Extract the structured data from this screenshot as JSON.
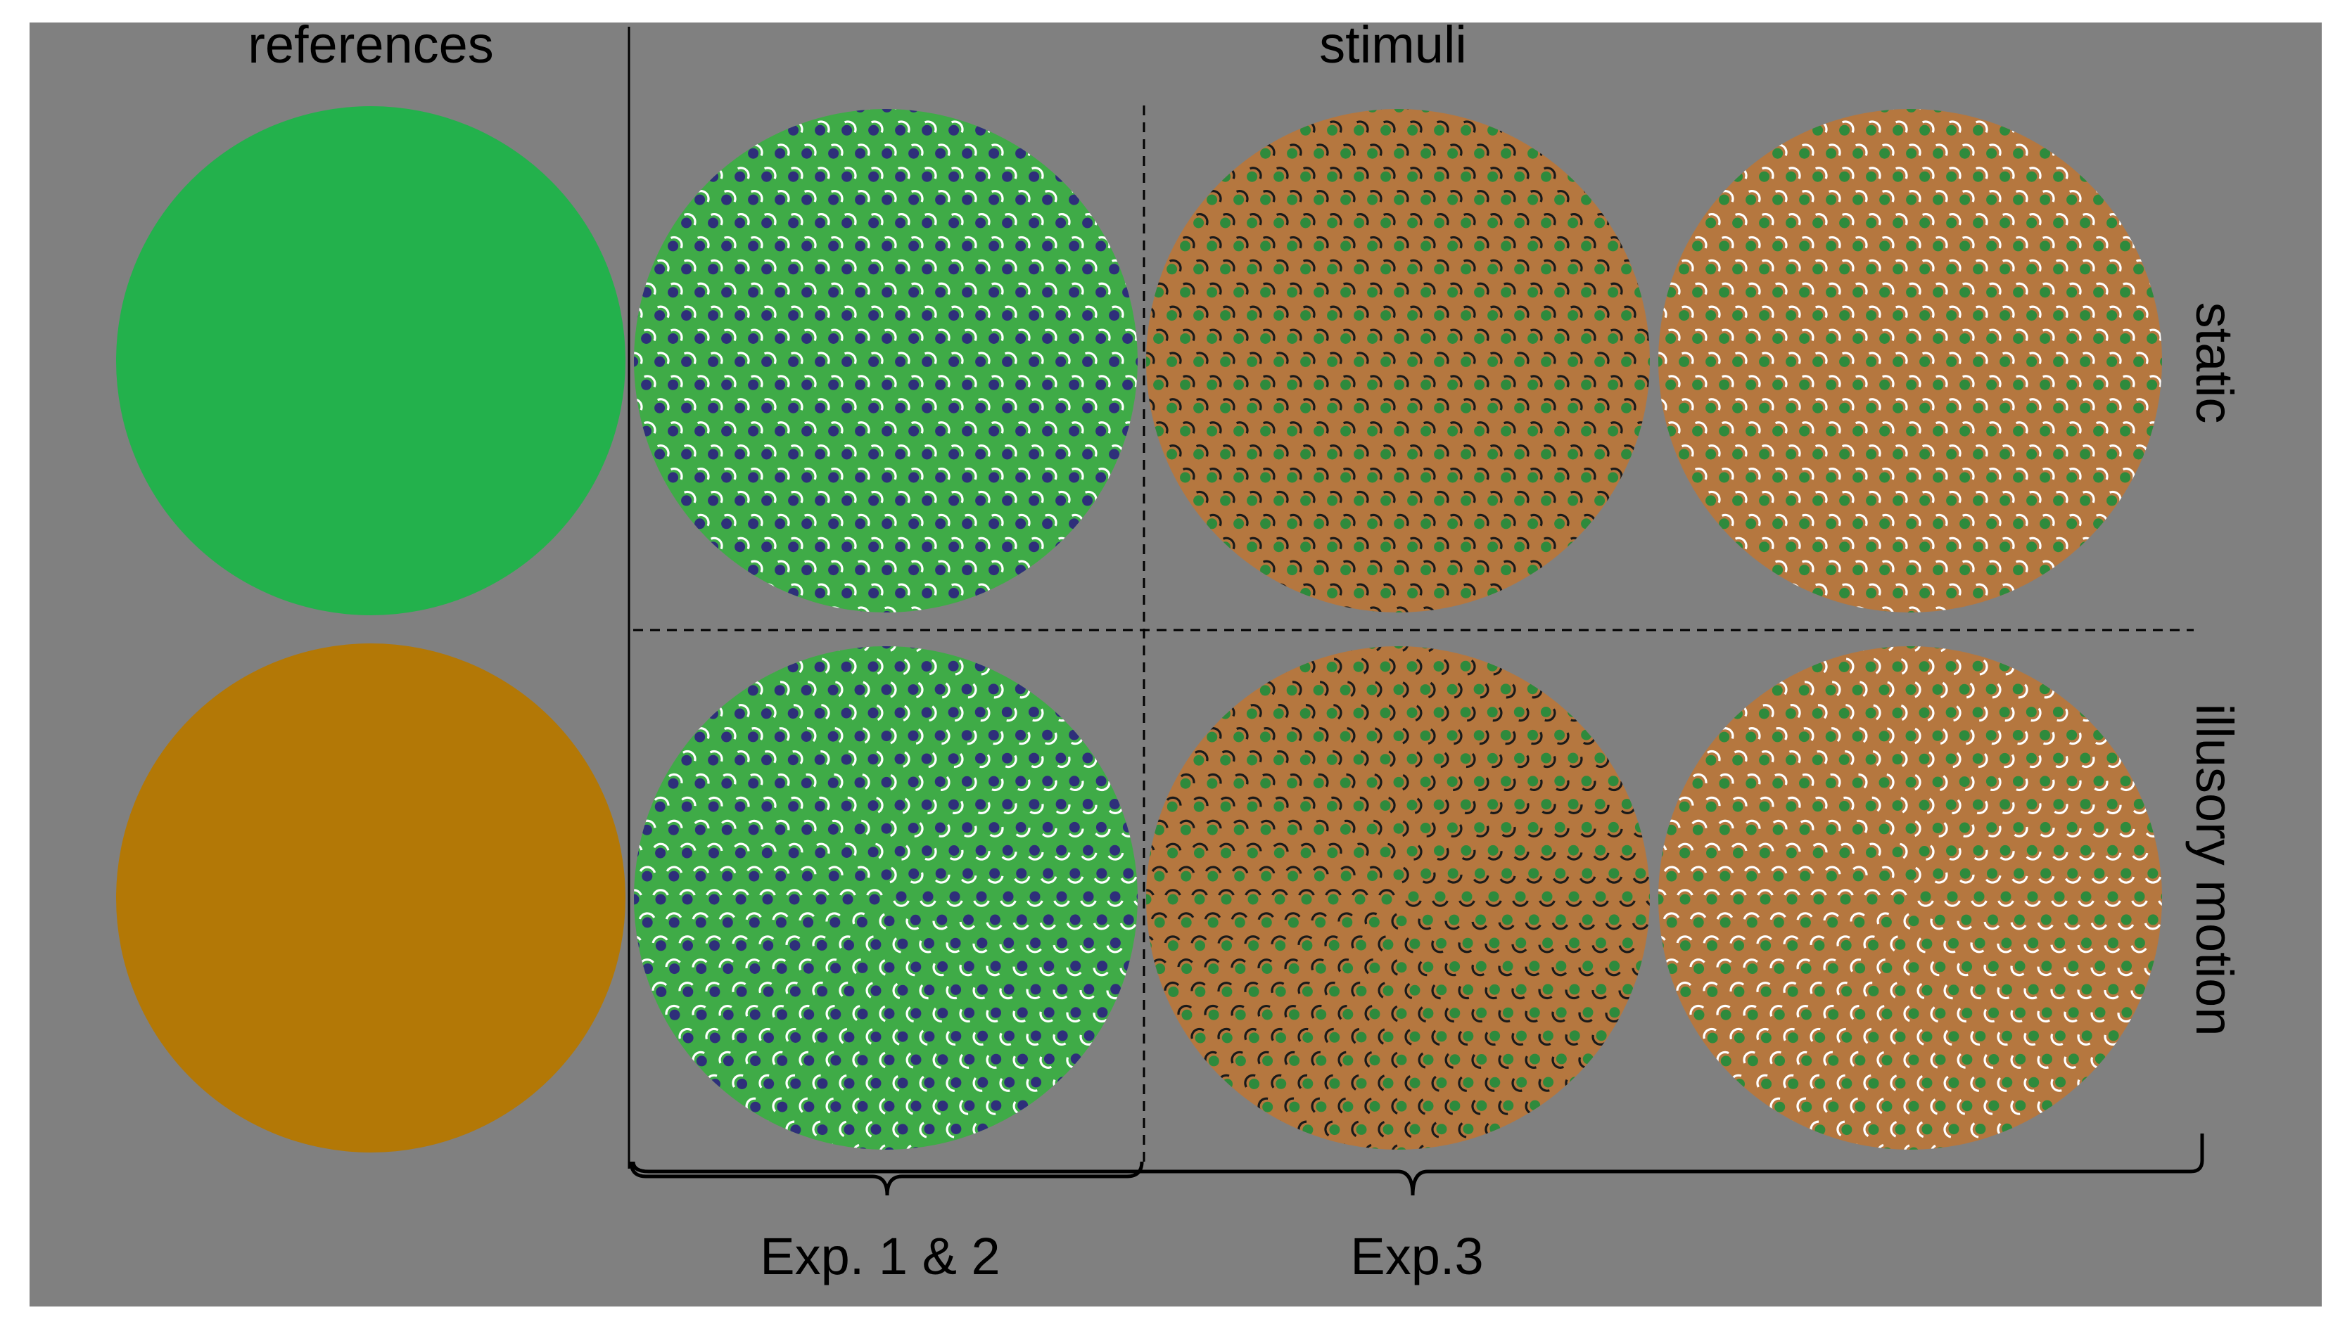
{
  "labels": {
    "references": "references",
    "stimuli": "stimuli",
    "static": "static",
    "illusory_motion": "illusory motion",
    "exp12": "Exp. 1 & 2",
    "exp3": "Exp.3"
  },
  "colors": {
    "panel_background": "#808080",
    "page_background": "#ffffff",
    "reference_green": "#23b14c",
    "reference_orange": "#b37806",
    "stimulus_green": "#3fab47",
    "stimulus_brown": "#b5773f",
    "dot_navy": "#2e2f7a",
    "dot_green": "#2e8a3c",
    "dot_dark": "#1a1a1a",
    "arc_white": "#ffffff",
    "line": "#000000"
  },
  "references": [
    {
      "name": "green-reference",
      "color": "reference_green"
    },
    {
      "name": "orange-reference",
      "color": "reference_orange"
    }
  ],
  "stimuli": [
    {
      "row": "static",
      "group": "exp12",
      "fill": "stimulus_green",
      "dot": "dot_navy",
      "arc": "arc_white",
      "pattern": "lattice"
    },
    {
      "row": "static",
      "group": "exp3",
      "fill": "stimulus_brown",
      "dot": "dot_green",
      "arc": "dot_dark",
      "pattern": "lattice"
    },
    {
      "row": "static",
      "group": "exp3",
      "fill": "stimulus_brown",
      "dot": "dot_green",
      "arc": "arc_white",
      "pattern": "lattice"
    },
    {
      "row": "illusory_motion",
      "group": "exp12",
      "fill": "stimulus_green",
      "dot": "dot_navy",
      "arc": "arc_white",
      "pattern": "rotated"
    },
    {
      "row": "illusory_motion",
      "group": "exp3",
      "fill": "stimulus_brown",
      "dot": "dot_green",
      "arc": "dot_dark",
      "pattern": "rotated"
    },
    {
      "row": "illusory_motion",
      "group": "exp3",
      "fill": "stimulus_brown",
      "dot": "dot_green",
      "arc": "arc_white",
      "pattern": "rotated"
    }
  ]
}
